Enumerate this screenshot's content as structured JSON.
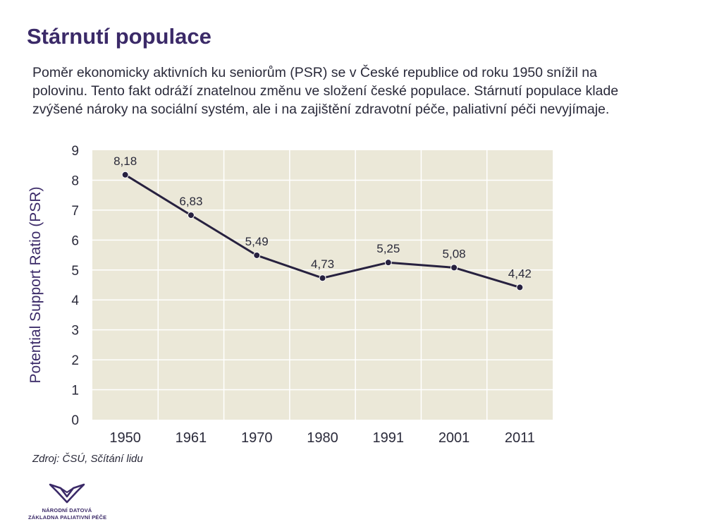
{
  "slide": {
    "title": "Stárnutí populace",
    "intro": "Poměr ekonomicky aktivních ku seniorům (PSR) se v České republice od roku 1950 snížil na polovinu. Tento fakt odráží znatelnou změnu ve složení české populace. Stárnutí populace klade zvýšené nároky na sociální systém, ale i na zajištění zdravotní péče, paliativní péči nevyjímaje.",
    "source": "Zdroj: ČSÚ, Sčítání lidu"
  },
  "logo": {
    "line1": "NÁRODNÍ DATOVÁ",
    "line2": "ZÁKLADNA PALIATIVNÍ PÉČE",
    "color": "#3b2a68"
  },
  "colors": {
    "plot_background": "#ebe8d8",
    "grid": "#ffffff",
    "line": "#27213f",
    "text": "#2a2a3a",
    "accent": "#3b2a68"
  },
  "chart_data": {
    "type": "line",
    "categories": [
      "1950",
      "1961",
      "1970",
      "1980",
      "1991",
      "2001",
      "2011"
    ],
    "values": [
      8.18,
      6.83,
      5.49,
      4.73,
      5.25,
      5.08,
      4.42
    ],
    "data_labels": [
      "8,18",
      "6,83",
      "5,49",
      "4,73",
      "5,25",
      "5,08",
      "4,42"
    ],
    "title": "",
    "xlabel": "",
    "ylabel": "Potential Support Ratio (PSR)",
    "ylim": [
      0,
      9
    ],
    "yticks": [
      "0",
      "1",
      "2",
      "3",
      "4",
      "5",
      "6",
      "7",
      "8",
      "9"
    ],
    "grid": true,
    "legend": "none"
  }
}
